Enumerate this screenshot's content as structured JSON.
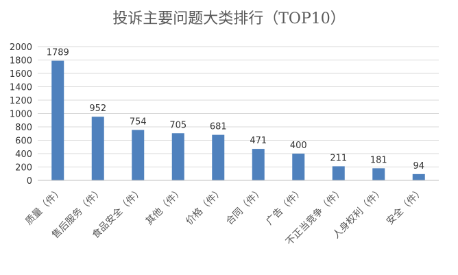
{
  "chart_data": {
    "type": "bar",
    "title": "投诉主要问题大类排行（TOP10）",
    "categories": [
      "质量（件）",
      "售后服务（件）",
      "食品安全（件）",
      "其他（件）",
      "价格（件）",
      "合同（件）",
      "广告（件）",
      "不正当竞争（件）",
      "人身权利（件）",
      "安全（件）"
    ],
    "values": [
      1789,
      952,
      754,
      705,
      681,
      471,
      400,
      211,
      181,
      94
    ],
    "yticks": [
      "0",
      "200",
      "400",
      "600",
      "800",
      "1000",
      "1200",
      "1400",
      "1600",
      "1800",
      "2000"
    ],
    "ylim": [
      0,
      2000
    ],
    "grid": true,
    "legend": "none",
    "colors": {
      "bar": "#4f81bd",
      "grid": "#d9d9d9"
    }
  }
}
